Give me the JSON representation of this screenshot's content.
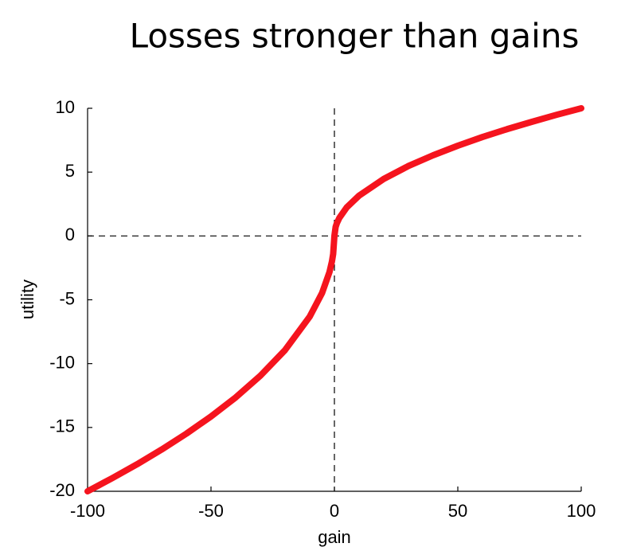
{
  "chart_data": {
    "type": "line",
    "title": "Losses stronger than gains",
    "xlabel": "gain",
    "ylabel": "utility",
    "x": [
      -100,
      -90,
      -80,
      -70,
      -60,
      -50,
      -40,
      -30,
      -20,
      -10,
      -5,
      -2,
      -1,
      -0.5,
      0,
      0.5,
      1,
      2,
      5,
      10,
      20,
      30,
      40,
      50,
      60,
      70,
      80,
      90,
      100
    ],
    "values": [
      -20,
      -18.97,
      -17.89,
      -16.73,
      -15.49,
      -14.14,
      -12.65,
      -10.95,
      -8.94,
      -6.32,
      -4.47,
      -2.83,
      -2,
      -1.41,
      0,
      0.71,
      1,
      1.41,
      2.24,
      3.16,
      4.47,
      5.48,
      6.32,
      7.07,
      7.75,
      8.37,
      8.94,
      9.49,
      10
    ],
    "color": "#f5141e",
    "xlim": [
      -100,
      100
    ],
    "xticks": [
      -100,
      -50,
      0,
      50,
      100
    ],
    "ylim": [
      -20,
      10
    ],
    "yticks": [
      -20,
      -15,
      -10,
      -5,
      0,
      5,
      10
    ],
    "hlines": [
      0
    ],
    "vlines": [
      0
    ]
  }
}
